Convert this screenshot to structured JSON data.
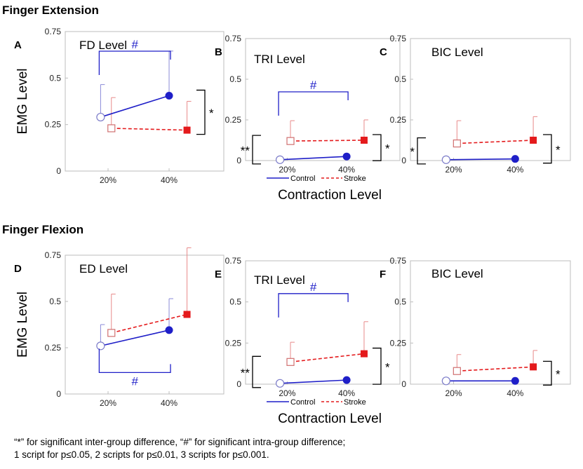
{
  "section_titles": [
    "Finger Extension",
    "Finger Flexion"
  ],
  "shared": {
    "y_axis_label": "EMG Level",
    "x_axis_label": "Contraction Level",
    "legend": [
      "Control",
      "Stroke"
    ],
    "colors": {
      "control": "#1f1fc8",
      "stroke": "#e41a1c",
      "bracket_blue": "#1f1fc8",
      "bracket_black": "#000000"
    }
  },
  "caption": [
    "“*” for significant inter-group difference, “#” for significant intra-group  difference;",
    "1 script for p≤0.05, 2 scripts for p≤0.01, 3 scripts for p≤0.001."
  ],
  "chart_data": [
    {
      "type": "line",
      "panel_letter": "A",
      "title": "FD Level",
      "categories": [
        "20%",
        "40%"
      ],
      "ylim": [
        0,
        0.75
      ],
      "yticks": [
        "0",
        "0.25",
        "0.5",
        "0.75"
      ],
      "series": [
        {
          "name": "Control",
          "values": [
            0.29,
            0.405
          ],
          "errors": [
            0.465,
            0.645
          ]
        },
        {
          "name": "Stroke",
          "values": [
            0.23,
            0.22
          ],
          "errors": [
            0.395,
            0.375
          ]
        }
      ],
      "annotations": [
        {
          "type": "intra",
          "symbol": "#",
          "placement": "above"
        },
        {
          "type": "inter",
          "symbol": "*",
          "at": "40%"
        }
      ]
    },
    {
      "type": "line",
      "panel_letter": "B",
      "title": "TRI Level",
      "categories": [
        "20%",
        "40%"
      ],
      "ylim": [
        0,
        0.75
      ],
      "yticks": [
        "0",
        "0.25",
        "0.5",
        "0.75"
      ],
      "series": [
        {
          "name": "Control",
          "values": [
            0.005,
            0.025
          ],
          "errors": [
            0.005,
            0.025
          ]
        },
        {
          "name": "Stroke",
          "values": [
            0.12,
            0.125
          ],
          "errors": [
            0.245,
            0.25
          ]
        }
      ],
      "annotations": [
        {
          "type": "intra",
          "symbol": "#",
          "placement": "above"
        },
        {
          "type": "inter",
          "symbol": "**",
          "at": "20%"
        },
        {
          "type": "inter",
          "symbol": "*",
          "at": "40%"
        }
      ]
    },
    {
      "type": "line",
      "panel_letter": "C",
      "title": "BIC Level",
      "categories": [
        "20%",
        "40%"
      ],
      "ylim": [
        0,
        0.75
      ],
      "yticks": [
        "0",
        "0.25",
        "0.5",
        "0.75"
      ],
      "series": [
        {
          "name": "Control",
          "values": [
            0.005,
            0.01
          ],
          "errors": [
            0.005,
            0.01
          ]
        },
        {
          "name": "Stroke",
          "values": [
            0.105,
            0.125
          ],
          "errors": [
            0.245,
            0.27
          ]
        }
      ],
      "annotations": [
        {
          "type": "inter",
          "symbol": "*",
          "at": "20%"
        },
        {
          "type": "inter",
          "symbol": "*",
          "at": "40%"
        }
      ]
    },
    {
      "type": "line",
      "panel_letter": "D",
      "title": "ED Level",
      "categories": [
        "20%",
        "40%"
      ],
      "ylim": [
        0,
        0.75
      ],
      "yticks": [
        "0",
        "0.25",
        "0.5",
        "0.75"
      ],
      "series": [
        {
          "name": "Control",
          "values": [
            0.26,
            0.345
          ],
          "errors": [
            0.375,
            0.515
          ]
        },
        {
          "name": "Stroke",
          "values": [
            0.33,
            0.43
          ],
          "errors": [
            0.54,
            0.79
          ]
        }
      ],
      "annotations": [
        {
          "type": "intra",
          "symbol": "#",
          "placement": "below"
        }
      ]
    },
    {
      "type": "line",
      "panel_letter": "E",
      "title": "TRI Level",
      "categories": [
        "20%",
        "40%"
      ],
      "ylim": [
        0,
        0.75
      ],
      "yticks": [
        "0",
        "0.25",
        "0.5",
        "0.75"
      ],
      "series": [
        {
          "name": "Control",
          "values": [
            0.005,
            0.025
          ],
          "errors": [
            0.005,
            0.025
          ]
        },
        {
          "name": "Stroke",
          "values": [
            0.135,
            0.185
          ],
          "errors": [
            0.255,
            0.38
          ]
        }
      ],
      "annotations": [
        {
          "type": "intra",
          "symbol": "#",
          "placement": "above"
        },
        {
          "type": "inter",
          "symbol": "**",
          "at": "20%"
        },
        {
          "type": "inter",
          "symbol": "*",
          "at": "40%"
        }
      ]
    },
    {
      "type": "line",
      "panel_letter": "F",
      "title": "BIC Level",
      "categories": [
        "20%",
        "40%"
      ],
      "ylim": [
        0,
        0.75
      ],
      "yticks": [
        "0",
        "0.25",
        "0.5",
        "0.75"
      ],
      "series": [
        {
          "name": "Control",
          "values": [
            0.02,
            0.02
          ],
          "errors": [
            0.02,
            0.02
          ]
        },
        {
          "name": "Stroke",
          "values": [
            0.08,
            0.105
          ],
          "errors": [
            0.18,
            0.205
          ]
        }
      ],
      "annotations": [
        {
          "type": "inter",
          "symbol": "*",
          "at": "40%"
        }
      ]
    }
  ]
}
